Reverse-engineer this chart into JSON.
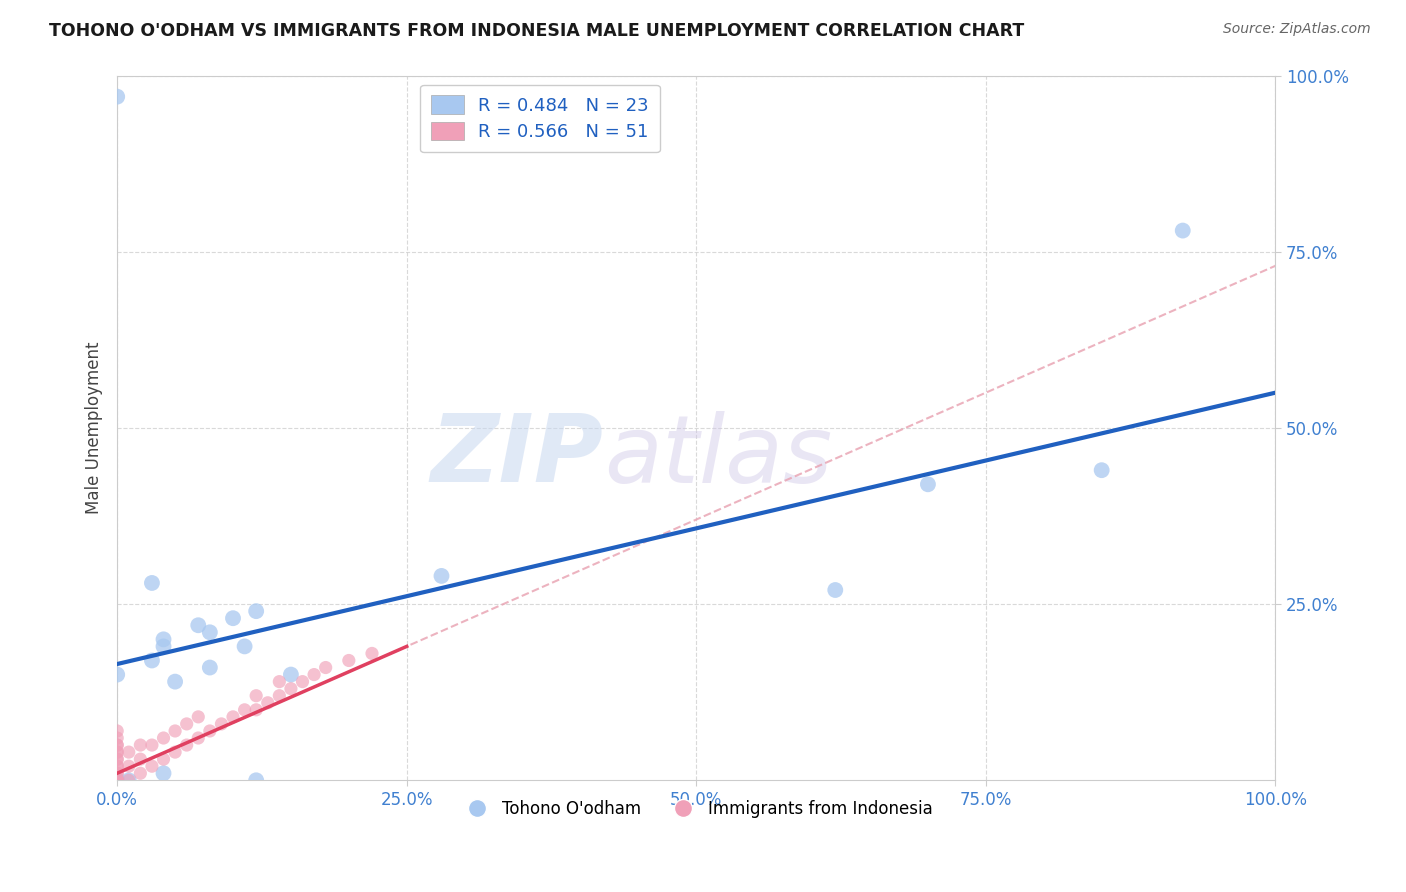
{
  "title": "TOHONO O'ODHAM VS IMMIGRANTS FROM INDONESIA MALE UNEMPLOYMENT CORRELATION CHART",
  "source": "Source: ZipAtlas.com",
  "xlabel": "",
  "ylabel": "Male Unemployment",
  "watermark_zip": "ZIP",
  "watermark_atlas": "atlas",
  "xlim": [
    0,
    1
  ],
  "ylim": [
    0,
    1
  ],
  "xticks": [
    0,
    0.25,
    0.5,
    0.75,
    1.0
  ],
  "yticks": [
    0.25,
    0.5,
    0.75,
    1.0
  ],
  "xtick_labels": [
    "0.0%",
    "25.0%",
    "50.0%",
    "75.0%",
    "100.0%"
  ],
  "ytick_labels": [
    "25.0%",
    "50.0%",
    "75.0%",
    "100.0%"
  ],
  "blue_color": "#a8c8f0",
  "pink_color": "#f0a0b8",
  "blue_line_color": "#2060c0",
  "pink_line_color": "#e04060",
  "dash_line_color": "#e8a0b0",
  "blue_R": 0.484,
  "blue_N": 23,
  "pink_R": 0.566,
  "pink_N": 51,
  "blue_label": "Tohono O'odham",
  "pink_label": "Immigrants from Indonesia",
  "blue_points_x": [
    0.08,
    0.04,
    0.03,
    0.05,
    0.04,
    0.07,
    0.03,
    0.1,
    0.12,
    0.0,
    0.11,
    0.28,
    0.62,
    0.7,
    0.85,
    0.92,
    0.04,
    0.01,
    0.12,
    0.08,
    0.0,
    0.0,
    0.15
  ],
  "blue_points_y": [
    0.21,
    0.19,
    0.17,
    0.14,
    0.2,
    0.22,
    0.28,
    0.23,
    0.24,
    0.15,
    0.19,
    0.29,
    0.27,
    0.42,
    0.44,
    0.78,
    0.01,
    0.0,
    0.0,
    0.16,
    0.97,
    0.0,
    0.15
  ],
  "pink_points_x": [
    0.0,
    0.0,
    0.0,
    0.0,
    0.0,
    0.0,
    0.0,
    0.0,
    0.0,
    0.0,
    0.0,
    0.0,
    0.0,
    0.0,
    0.0,
    0.0,
    0.0,
    0.0,
    0.0,
    0.0,
    0.01,
    0.01,
    0.01,
    0.02,
    0.02,
    0.02,
    0.03,
    0.03,
    0.04,
    0.04,
    0.05,
    0.05,
    0.06,
    0.06,
    0.07,
    0.07,
    0.08,
    0.09,
    0.1,
    0.11,
    0.12,
    0.12,
    0.13,
    0.14,
    0.14,
    0.15,
    0.16,
    0.17,
    0.18,
    0.2,
    0.22
  ],
  "pink_points_y": [
    0.0,
    0.0,
    0.0,
    0.0,
    0.0,
    0.0,
    0.0,
    0.0,
    0.01,
    0.01,
    0.02,
    0.02,
    0.03,
    0.03,
    0.04,
    0.04,
    0.05,
    0.05,
    0.06,
    0.07,
    0.0,
    0.02,
    0.04,
    0.01,
    0.03,
    0.05,
    0.02,
    0.05,
    0.03,
    0.06,
    0.04,
    0.07,
    0.05,
    0.08,
    0.06,
    0.09,
    0.07,
    0.08,
    0.09,
    0.1,
    0.1,
    0.12,
    0.11,
    0.12,
    0.14,
    0.13,
    0.14,
    0.15,
    0.16,
    0.17,
    0.18
  ],
  "blue_intercept": 0.165,
  "blue_slope": 0.385,
  "pink_intercept": 0.01,
  "pink_slope": 0.72,
  "pink_line_x_end": 0.25,
  "bg_color": "#ffffff",
  "grid_color": "#d0d0d0"
}
